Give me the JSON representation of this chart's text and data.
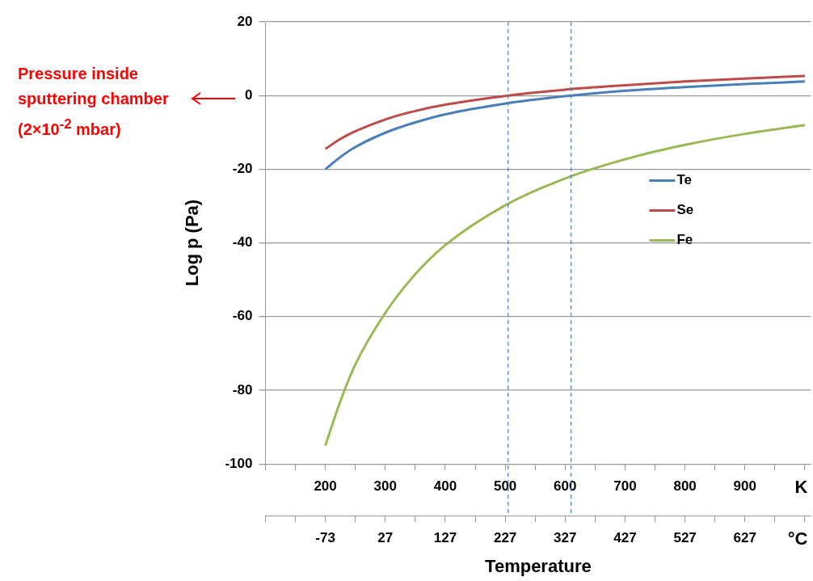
{
  "chart_data": {
    "type": "line",
    "xlabel": "Temperature",
    "ylabel": "Log p (Pa)",
    "x": [
      200,
      225,
      250,
      300,
      350,
      400,
      500,
      600,
      700,
      800,
      900,
      1000
    ],
    "series": [
      {
        "name": "Te",
        "color": "#4a7ebb",
        "values": [
          -20,
          -16.7,
          -14,
          -10.1,
          -7.3,
          -5.1,
          -2.2,
          -0.2,
          1.3,
          2.3,
          3.1,
          3.8
        ]
      },
      {
        "name": "Se",
        "color": "#be4b48",
        "values": [
          -14.5,
          -11.8,
          -9.7,
          -6.5,
          -4.2,
          -2.5,
          -0.1,
          1.6,
          2.8,
          3.8,
          4.6,
          5.3
        ]
      },
      {
        "name": "Fe",
        "color": "#98b954",
        "values": [
          -95,
          -83,
          -73,
          -59,
          -48.5,
          -40.6,
          -29.8,
          -22.5,
          -17.3,
          -13.4,
          -10.4,
          -8
        ]
      }
    ],
    "xlim": [
      100,
      1010
    ],
    "xticks": [
      {
        "value": 100,
        "label": null
      },
      {
        "value": 150,
        "label": null
      },
      200,
      {
        "value": 250,
        "label": null
      },
      300,
      {
        "value": 350,
        "label": null
      },
      400,
      {
        "value": 450,
        "label": null
      },
      500,
      {
        "value": 550,
        "label": null
      },
      600,
      {
        "value": 650,
        "label": null
      },
      700,
      {
        "value": 750,
        "label": null
      },
      800,
      {
        "value": 850,
        "label": null
      },
      900,
      {
        "value": 950,
        "label": null
      },
      {
        "value": 1000,
        "label": null
      }
    ],
    "x2lim": [
      -173,
      737
    ],
    "x2ticks": [
      {
        "value": -173,
        "label": null
      },
      {
        "value": -123,
        "label": null
      },
      -73,
      {
        "value": -23,
        "label": null
      },
      27,
      {
        "value": 77,
        "label": null
      },
      127,
      {
        "value": 177,
        "label": null
      },
      227,
      {
        "value": 277,
        "label": null
      },
      327,
      {
        "value": 377,
        "label": null
      },
      427,
      {
        "value": 477,
        "label": null
      },
      527,
      {
        "value": 577,
        "label": null
      },
      627,
      {
        "value": 677,
        "label": null
      },
      {
        "value": 727,
        "label": null
      }
    ],
    "ylim": [
      -100,
      20
    ],
    "yticks": [
      -100,
      -80,
      -60,
      -40,
      -20,
      0,
      20
    ],
    "grid": "y",
    "legend": "right",
    "marker": "none",
    "line_style": "solid",
    "ref_lines": [
      {
        "axis": "x",
        "value": 505,
        "color": "#4a7ebb",
        "line_style": "dashed"
      },
      {
        "axis": "x",
        "value": 610,
        "color": "#4a7ebb",
        "line_style": "dashed"
      }
    ],
    "annotations": [
      "Pressure inside sputtering chamber (2×10$^{-2}$ mbar)",
      "K",
      "°C"
    ]
  }
}
